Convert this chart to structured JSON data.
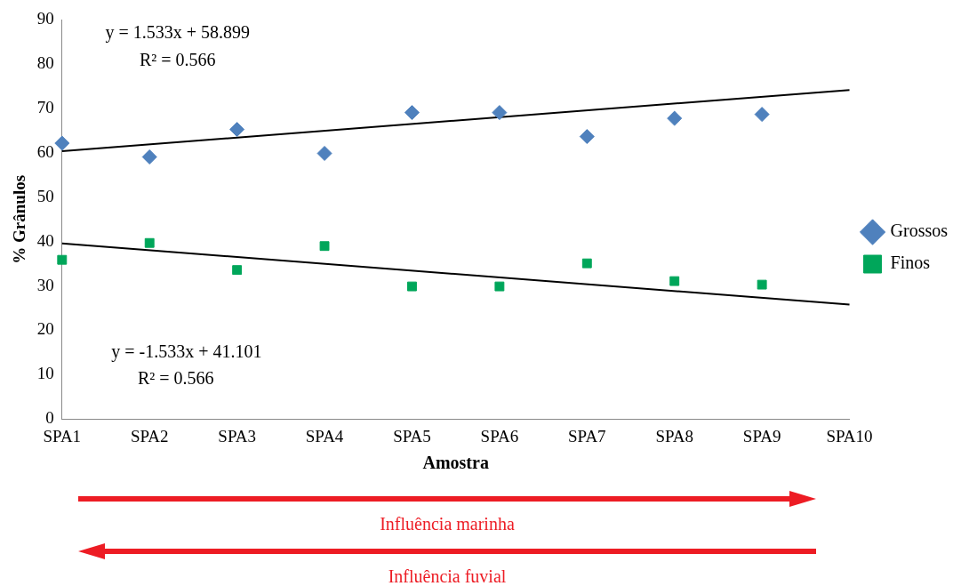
{
  "chart_data": {
    "type": "scatter",
    "xlabel": "Amostra",
    "ylabel": "% Grânulos",
    "categories": [
      "SPA1",
      "SPA2",
      "SPA3",
      "SPA4",
      "SPA5",
      "SPA6",
      "SPA7",
      "SPA8",
      "SPA9",
      "SPA10"
    ],
    "ylim": [
      0,
      90
    ],
    "yticks": [
      0,
      10,
      20,
      30,
      40,
      50,
      60,
      70,
      80,
      90
    ],
    "grid": false,
    "legend": "right",
    "series": [
      {
        "name": "Grossos",
        "color": "#4f81bd",
        "marker": "diamond",
        "values": [
          62.2,
          59.1,
          65.3,
          59.9,
          69.1,
          69.1,
          63.7,
          67.8,
          68.7,
          null
        ]
      },
      {
        "name": "Finos",
        "color": "#00a65a",
        "marker": "square",
        "values": [
          35.9,
          39.7,
          33.6,
          39.0,
          29.9,
          29.9,
          35.1,
          31.1,
          30.3,
          null
        ]
      },
      {
        "type": "line",
        "color": "#000000",
        "x": [
          "SPA1",
          "SPA10"
        ],
        "values": [
          60.4,
          74.2
        ]
      },
      {
        "type": "line",
        "color": "#000000",
        "x": [
          "SPA1",
          "SPA10"
        ],
        "values": [
          39.6,
          25.8
        ]
      }
    ],
    "annotations": [
      "y = 1.533x + 58.899",
      "R² = 0.566",
      "y = -1.533x + 41.101",
      "R² = 0.566",
      "Influência marinha",
      "Influência fuvial"
    ]
  }
}
